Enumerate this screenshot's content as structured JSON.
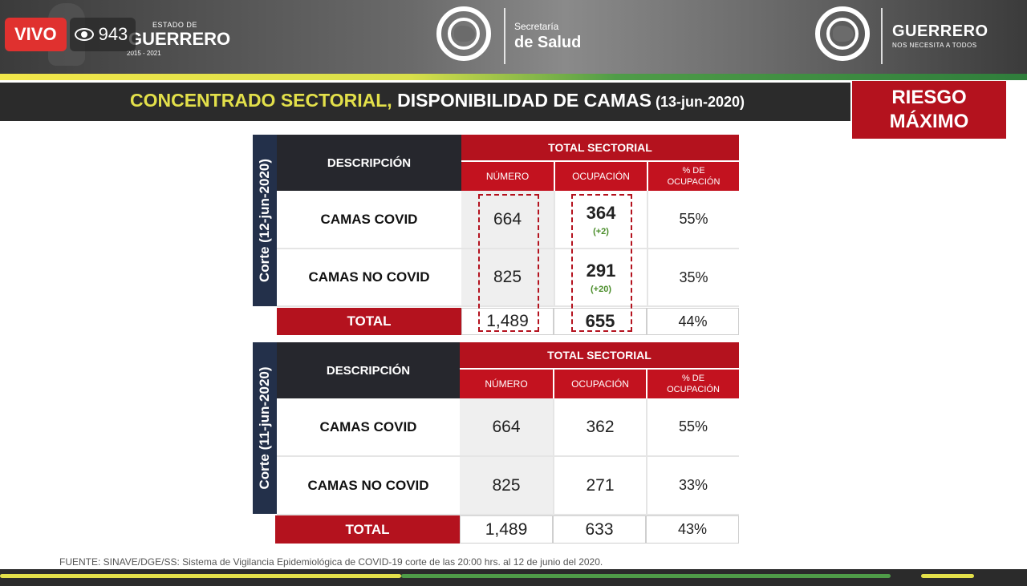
{
  "live": {
    "label": "VIVO",
    "views": "943",
    "eye_icon": "eye-icon"
  },
  "header": {
    "gov_small": "ESTADO DE",
    "gov_big": "GUERRERO",
    "gov_years": "2015 - 2021",
    "secretaria_line1": "Secretaría",
    "secretaria_line2": "de Salud",
    "guerrero_title": "GUERRERO",
    "guerrero_slogan": "NOS NECESITA A TODOS"
  },
  "title": {
    "part1": "CONCENTRADO SECTORIAL,",
    "part2": " DISPONIBILIDAD DE CAMAS",
    "date": " (13-jun-2020)"
  },
  "riesgo": {
    "line1": "RIESGO",
    "line2": "MÁXIMO"
  },
  "table1": {
    "corte": "Corte (12-jun-2020)",
    "desc_header": "DESCRIPCIÓN",
    "total_header": "TOTAL SECTORIAL",
    "col_numero": "NÚMERO",
    "col_ocupacion": "OCUPACIÓN",
    "col_pct_1": "% DE",
    "col_pct_2": "OCUPACIÓN",
    "rows": [
      {
        "label": "CAMAS COVID",
        "numero": "664",
        "ocupacion": "364",
        "delta": "(+2)",
        "pct": "55%"
      },
      {
        "label": "CAMAS NO COVID",
        "numero": "825",
        "ocupacion": "291",
        "delta": "(+20)",
        "pct": "35%"
      }
    ],
    "total": {
      "label": "TOTAL",
      "numero": "1,489",
      "ocupacion": "655",
      "pct": "44%"
    }
  },
  "table2": {
    "corte": "Corte (11-jun-2020)",
    "desc_header": "DESCRIPCIÓN",
    "total_header": "TOTAL SECTORIAL",
    "col_numero": "NÚMERO",
    "col_ocupacion": "OCUPACIÓN",
    "col_pct_1": "% DE",
    "col_pct_2": "OCUPACIÓN",
    "rows": [
      {
        "label": "CAMAS COVID",
        "numero": "664",
        "ocupacion": "362",
        "pct": "55%"
      },
      {
        "label": "CAMAS NO COVID",
        "numero": "825",
        "ocupacion": "271",
        "pct": "33%"
      }
    ],
    "total": {
      "label": "TOTAL",
      "numero": "1,489",
      "ocupacion": "633",
      "pct": "43%"
    }
  },
  "footer": {
    "source": "FUENTE: SINAVE/DGE/SS: Sistema de Vigilancia Epidemiológica de COVID-19 corte de las 20:00 hrs. al 12 de junio del 2020."
  },
  "colors": {
    "accent_red": "#b4121e",
    "navy": "#23304a",
    "dark": "#26272d",
    "green": "#4a8d2a",
    "yellow": "#e3e04a"
  }
}
